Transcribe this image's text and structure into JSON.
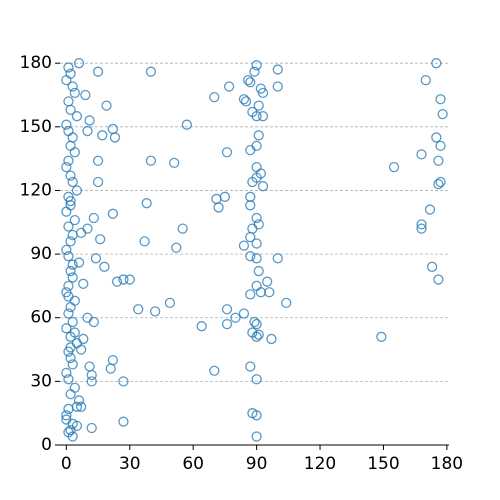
{
  "chart_data": {
    "type": "scatter",
    "color": "#1f77b4",
    "grid": true,
    "xlim": [
      -3,
      181
    ],
    "ylim": [
      0,
      181.5
    ],
    "xticks": [
      0,
      30,
      60,
      90,
      120,
      150,
      180
    ],
    "yticks": [
      0,
      30,
      60,
      90,
      120,
      150,
      180
    ],
    "x": [
      6,
      40,
      15,
      90,
      89,
      100,
      175,
      170,
      86,
      87,
      92,
      93,
      100,
      70,
      77,
      84,
      85,
      91,
      88,
      90,
      93,
      177,
      178,
      57,
      91,
      175,
      19,
      17,
      22,
      23,
      11,
      10,
      9,
      90,
      87,
      76,
      40,
      51,
      15,
      177,
      176,
      168,
      155,
      90,
      92,
      90,
      93,
      88,
      15,
      177,
      176,
      87,
      75,
      71,
      72,
      38,
      87,
      90,
      91,
      88,
      87,
      172,
      168,
      168,
      13,
      22,
      55,
      10,
      16,
      37,
      52,
      84,
      90,
      87,
      90,
      100,
      91,
      173,
      176,
      95,
      90,
      92,
      96,
      87,
      104,
      49,
      34,
      42,
      76,
      24,
      27,
      30,
      18,
      14,
      8,
      13,
      10,
      64,
      76,
      80,
      84,
      89,
      90,
      88,
      91,
      90,
      97,
      149,
      8,
      7,
      22,
      21,
      11,
      12,
      12,
      27,
      70,
      87,
      90,
      5,
      7,
      27,
      12,
      88,
      90,
      90,
      3,
      1,
      2,
      0,
      3,
      4,
      1,
      2,
      5,
      0,
      1,
      3,
      2,
      4,
      1,
      0,
      2,
      3,
      5,
      1,
      2,
      0,
      4,
      1,
      3,
      2,
      0,
      1,
      6,
      2,
      3,
      1,
      0,
      4,
      2,
      1,
      3,
      0,
      2,
      5,
      1,
      2,
      3,
      0,
      1,
      4,
      2,
      6,
      1,
      0,
      3,
      2,
      1,
      5,
      0,
      2,
      4,
      1,
      3,
      7,
      2
    ],
    "y": [
      180,
      176,
      176,
      179,
      176,
      177,
      180,
      172,
      172,
      171,
      168,
      166,
      169,
      164,
      169,
      163,
      162,
      160,
      157,
      155,
      155,
      163,
      156,
      151,
      146,
      145,
      160,
      146,
      149,
      145,
      153,
      148,
      165,
      141,
      139,
      138,
      134,
      133,
      134,
      141,
      134,
      137,
      131,
      131,
      128,
      126,
      122,
      124,
      124,
      124,
      123,
      117,
      117,
      116,
      112,
      114,
      113,
      107,
      104,
      102,
      98,
      111,
      104,
      102,
      107,
      109,
      102,
      102,
      97,
      96,
      93,
      94,
      95,
      89,
      88,
      88,
      82,
      84,
      78,
      77,
      75,
      72,
      72,
      71,
      67,
      67,
      64,
      63,
      64,
      77,
      78,
      78,
      84,
      88,
      76,
      58,
      60,
      56,
      57,
      60,
      62,
      58,
      57,
      53,
      52,
      51,
      50,
      51,
      50,
      45,
      40,
      36,
      37,
      33,
      30,
      30,
      35,
      37,
      31,
      18,
      18,
      11,
      8,
      15,
      14,
      4,
      4,
      178,
      175,
      172,
      169,
      166,
      162,
      158,
      155,
      151,
      148,
      145,
      141,
      138,
      134,
      131,
      127,
      124,
      120,
      117,
      113,
      110,
      106,
      103,
      99,
      96,
      92,
      89,
      86,
      82,
      79,
      75,
      72,
      68,
      65,
      62,
      58,
      55,
      51,
      48,
      44,
      41,
      38,
      34,
      31,
      27,
      24,
      21,
      17,
      14,
      10,
      7,
      6,
      9,
      12,
      46,
      53,
      70,
      85,
      100,
      115
    ]
  }
}
